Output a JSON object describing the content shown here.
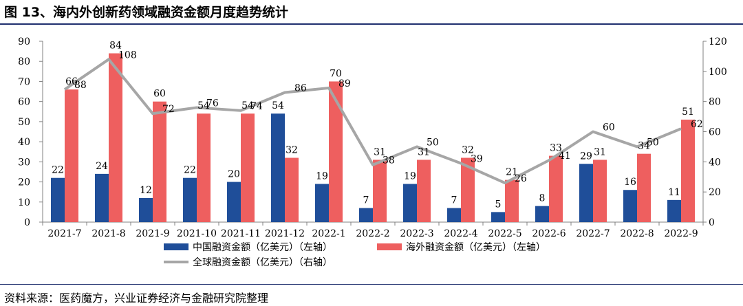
{
  "title": "图 13、海内外创新药领域融资金额月度趋势统计",
  "source": "资料来源：医药魔方，兴业证券经济与金融研究院整理",
  "chart_data": {
    "type": "bar",
    "categories": [
      "2021-7",
      "2021-8",
      "2021-9",
      "2021-10",
      "2021-11",
      "2021-12",
      "2022-1",
      "2022-2",
      "2022-3",
      "2022-4",
      "2022-5",
      "2022-6",
      "2022-7",
      "2022-8",
      "2022-9"
    ],
    "series": [
      {
        "name": "中国融资金额（亿美元）（左轴）",
        "type": "bar",
        "axis": "left",
        "color": "#1f4e99",
        "values": [
          22,
          24,
          12,
          22,
          20,
          54,
          19,
          7,
          19,
          7,
          5,
          8,
          29,
          16,
          11
        ]
      },
      {
        "name": "海外融资金额（亿美元）（左轴）",
        "type": "bar",
        "axis": "left",
        "color": "#ee5f5f",
        "values": [
          66,
          84,
          60,
          54,
          54,
          32,
          70,
          31,
          31,
          32,
          21,
          33,
          31,
          34,
          51
        ]
      },
      {
        "name": "全球融资金额（亿美元）（右轴）",
        "type": "line",
        "axis": "right",
        "color": "#a6a6a6",
        "values": [
          88,
          108,
          72,
          76,
          74,
          86,
          89,
          38,
          50,
          39,
          26,
          41,
          60,
          50,
          62
        ]
      }
    ],
    "left_axis": {
      "min": 0,
      "max": 90,
      "ticks": [
        "0",
        "10",
        "20",
        "30",
        "40",
        "50",
        "60",
        "70",
        "80",
        "90"
      ]
    },
    "right_axis": {
      "min": 0,
      "max": 120,
      "ticks": [
        "0",
        "20",
        "40",
        "60",
        "80",
        "100",
        "120"
      ]
    },
    "legend_position": "bottom"
  }
}
